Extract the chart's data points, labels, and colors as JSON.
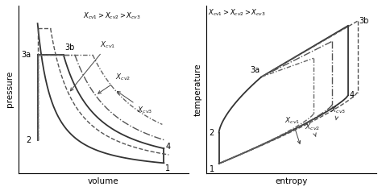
{
  "fig_width": 4.74,
  "fig_height": 2.37,
  "dpi": 100,
  "background": "#ffffff",
  "pv": {
    "xlabel": "volume",
    "ylabel": "pressure"
  },
  "ts": {
    "xlabel": "entropy",
    "ylabel": "temperature"
  }
}
